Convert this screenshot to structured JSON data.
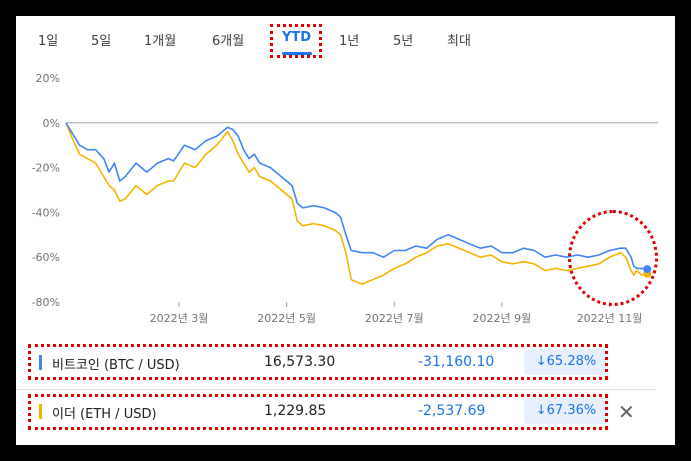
{
  "tabs": [
    {
      "label": "1일",
      "active": false
    },
    {
      "label": "5일",
      "active": false
    },
    {
      "label": "1개월",
      "active": false
    },
    {
      "label": "6개월",
      "active": false
    },
    {
      "label": "YTD",
      "active": true
    },
    {
      "label": "1년",
      "active": false
    },
    {
      "label": "5년",
      "active": false
    },
    {
      "label": "최대",
      "active": false
    }
  ],
  "assets": [
    {
      "name": "비트코인 (BTC / USD)",
      "price": "16,573.30",
      "change": "-31,160.10",
      "percent": "↓65.28%",
      "color": "#4285f4"
    },
    {
      "name": "이더 (ETH / USD)",
      "price": "1,229.85",
      "change": "-2,537.69",
      "percent": "↓67.36%",
      "color": "#f4b400"
    }
  ],
  "close_icon": "close-icon",
  "chart_data": {
    "type": "line",
    "y_ticks": [
      "20%",
      "0%",
      "-20%",
      "-40%",
      "-60%",
      "-80%"
    ],
    "ylim": [
      -80,
      20
    ],
    "xlim": [
      0,
      11
    ],
    "x_ticks": [
      {
        "x": 2.1,
        "label": "2022년 3월"
      },
      {
        "x": 4.1,
        "label": "2022년 5월"
      },
      {
        "x": 6.1,
        "label": "2022년 7월"
      },
      {
        "x": 8.1,
        "label": "2022년 9월"
      },
      {
        "x": 10.1,
        "label": "2022년 11월"
      }
    ],
    "baseline": 0,
    "series": [
      {
        "name": "비트코인 (BTC / USD)",
        "color": "#4285f4",
        "x": [
          0,
          0.1,
          0.25,
          0.4,
          0.55,
          0.7,
          0.8,
          0.9,
          1.0,
          1.1,
          1.3,
          1.5,
          1.7,
          1.9,
          2.0,
          2.2,
          2.4,
          2.6,
          2.8,
          3.0,
          3.1,
          3.2,
          3.3,
          3.4,
          3.5,
          3.6,
          3.8,
          4.0,
          4.2,
          4.3,
          4.4,
          4.6,
          4.8,
          5.0,
          5.1,
          5.2,
          5.3,
          5.5,
          5.7,
          5.9,
          6.1,
          6.3,
          6.5,
          6.7,
          6.9,
          7.1,
          7.3,
          7.5,
          7.7,
          7.9,
          8.1,
          8.3,
          8.5,
          8.7,
          8.9,
          9.1,
          9.3,
          9.5,
          9.7,
          9.9,
          10.1,
          10.3,
          10.4,
          10.5,
          10.55,
          10.6,
          10.7,
          10.8
        ],
        "values": [
          0,
          -4,
          -10,
          -12,
          -12,
          -16,
          -22,
          -18,
          -26,
          -24,
          -18,
          -22,
          -18,
          -16,
          -17,
          -10,
          -12,
          -8,
          -6,
          -2,
          -3,
          -6,
          -12,
          -16,
          -14,
          -18,
          -20,
          -24,
          -28,
          -36,
          -38,
          -37,
          -38,
          -40,
          -42,
          -50,
          -57,
          -58,
          -58,
          -60,
          -57,
          -57,
          -55,
          -56,
          -52,
          -50,
          -52,
          -54,
          -56,
          -55,
          -58,
          -58,
          -56,
          -57,
          -60,
          -59,
          -60,
          -59,
          -60,
          -59,
          -57,
          -56,
          -56,
          -60,
          -64,
          -65,
          -65,
          -65.3
        ]
      },
      {
        "name": "이더 (ETH / USD)",
        "color": "#f4b400",
        "x": [
          0,
          0.1,
          0.25,
          0.4,
          0.55,
          0.7,
          0.8,
          0.9,
          1.0,
          1.1,
          1.3,
          1.5,
          1.7,
          1.9,
          2.0,
          2.2,
          2.4,
          2.6,
          2.8,
          3.0,
          3.1,
          3.2,
          3.3,
          3.4,
          3.5,
          3.6,
          3.8,
          4.0,
          4.2,
          4.3,
          4.4,
          4.6,
          4.8,
          5.0,
          5.1,
          5.2,
          5.3,
          5.5,
          5.7,
          5.9,
          6.1,
          6.3,
          6.5,
          6.7,
          6.9,
          7.1,
          7.3,
          7.5,
          7.7,
          7.9,
          8.1,
          8.3,
          8.5,
          8.7,
          8.9,
          9.1,
          9.3,
          9.5,
          9.7,
          9.9,
          10.1,
          10.3,
          10.4,
          10.5,
          10.55,
          10.6,
          10.7,
          10.8
        ],
        "values": [
          0,
          -6,
          -14,
          -16,
          -18,
          -24,
          -28,
          -30,
          -35,
          -34,
          -28,
          -32,
          -28,
          -26,
          -26,
          -18,
          -20,
          -14,
          -10,
          -4,
          -8,
          -14,
          -18,
          -22,
          -20,
          -24,
          -26,
          -30,
          -34,
          -44,
          -46,
          -45,
          -46,
          -48,
          -50,
          -58,
          -70,
          -72,
          -70,
          -68,
          -65,
          -63,
          -60,
          -58,
          -55,
          -54,
          -56,
          -58,
          -60,
          -59,
          -62,
          -63,
          -62,
          -63,
          -66,
          -65,
          -66,
          -65,
          -64,
          -63,
          -60,
          -58,
          -60,
          -66,
          -68,
          -66,
          -68,
          -67.4
        ]
      }
    ]
  }
}
